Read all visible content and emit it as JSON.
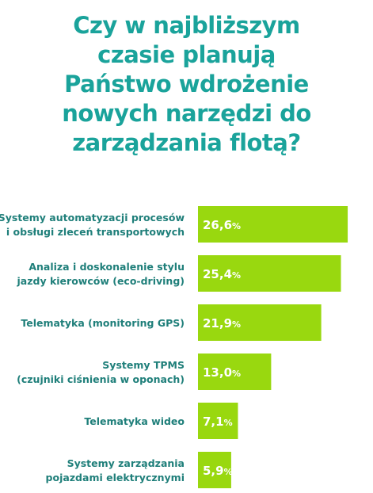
{
  "title_lines": [
    "Czy w najbliższym",
    "czasie planują",
    "Państwo wdrożenie",
    "nowych narzędzi do",
    "zarządzania flotą?"
  ],
  "colors": {
    "title": "#1aa39b",
    "label": "#1f7f7a",
    "bar": "#99d80f",
    "bar_text": "#ffffff"
  },
  "chart_data": {
    "type": "bar",
    "orientation": "horizontal",
    "categories": [
      [
        "Systemy automatyzacji procesów",
        "i obsługi zleceń transportowych"
      ],
      [
        "Analiza i doskonalenie stylu",
        "jazdy kierowców (eco-driving)"
      ],
      [
        "Telematyka (monitoring GPS)"
      ],
      [
        "Systemy TPMS",
        "(czujniki ciśnienia w oponach)"
      ],
      [
        "Telematyka wideo"
      ],
      [
        "Systemy zarządzania",
        "pojazdami elektrycznymi"
      ]
    ],
    "values": [
      26.6,
      25.4,
      21.9,
      13.0,
      7.1,
      5.9
    ],
    "value_labels": [
      "26,6",
      "25,4",
      "21,9",
      "13,0",
      "7,1",
      "5,9"
    ],
    "unit": "%",
    "title": "",
    "xlabel": "",
    "ylabel": "",
    "xlim": [
      0,
      28
    ]
  }
}
